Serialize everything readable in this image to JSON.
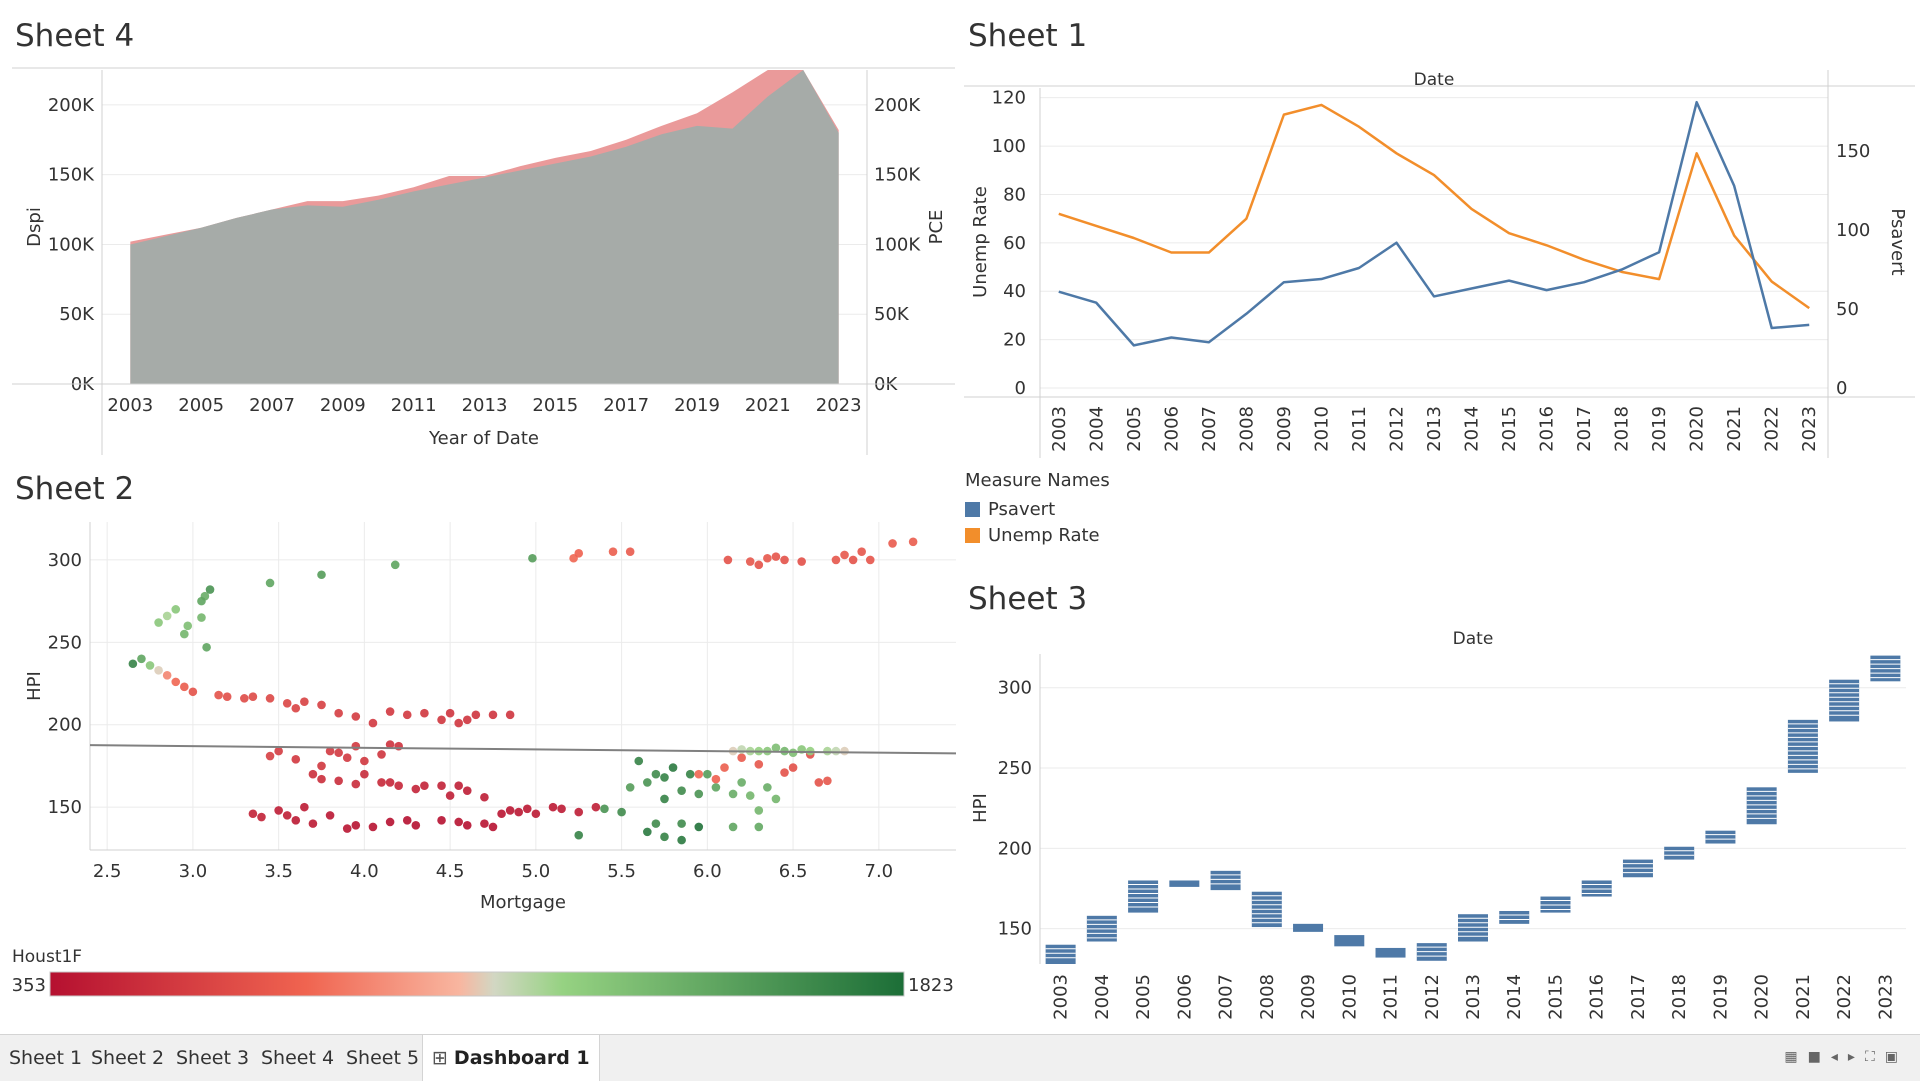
{
  "sheets": {
    "sheet4": {
      "title": "Sheet 4"
    },
    "sheet1": {
      "title": "Sheet 1"
    },
    "sheet2": {
      "title": "Sheet 2"
    },
    "sheet3": {
      "title": "Sheet 3"
    }
  },
  "legend": {
    "title": "Measure Names",
    "items": [
      {
        "label": "Psavert",
        "color": "#4e79a7"
      },
      {
        "label": "Unemp Rate",
        "color": "#f28e2b"
      }
    ]
  },
  "tabs": [
    {
      "label": "Sheet 1"
    },
    {
      "label": "Sheet 2"
    },
    {
      "label": "Sheet 3"
    },
    {
      "label": "Sheet 4"
    },
    {
      "label": "Sheet 5"
    },
    {
      "label": "Dashboard 1",
      "active": true,
      "icon": "dashboard-icon"
    }
  ],
  "chart_data": [
    {
      "id": "sheet4",
      "type": "area",
      "xlabel": "Year of Date",
      "ylabel": "Dspi",
      "y2label": "PCE",
      "x": [
        2003,
        2004,
        2005,
        2006,
        2007,
        2008,
        2009,
        2010,
        2011,
        2012,
        2013,
        2014,
        2015,
        2016,
        2017,
        2018,
        2019,
        2020,
        2021,
        2022,
        2023
      ],
      "xticks": [
        2003,
        2005,
        2007,
        2009,
        2011,
        2013,
        2015,
        2017,
        2019,
        2021,
        2023
      ],
      "ylim": [
        0,
        225000
      ],
      "yticks": [
        0,
        50000,
        100000,
        150000,
        200000
      ],
      "yticklabels": [
        "0K",
        "50K",
        "100K",
        "150K",
        "200K"
      ],
      "y2lim": [
        0,
        225000
      ],
      "y2ticks": [
        0,
        50000,
        100000,
        150000,
        200000
      ],
      "y2ticklabels": [
        "0K",
        "50K",
        "100K",
        "150K",
        "200K"
      ],
      "series": [
        {
          "name": "Dspi",
          "color": "#ea9a9a",
          "values": [
            102000,
            107000,
            112000,
            119000,
            125000,
            131000,
            131000,
            135000,
            141000,
            149000,
            149000,
            156000,
            162000,
            167000,
            175000,
            185000,
            194000,
            209000,
            225000,
            225000,
            182000
          ]
        },
        {
          "name": "PCE",
          "color": "#a6aba8",
          "values": [
            100000,
            106000,
            112000,
            119000,
            125000,
            128000,
            127000,
            132000,
            138000,
            143000,
            148000,
            153000,
            158000,
            163000,
            170000,
            179000,
            185000,
            183000,
            206000,
            225000,
            180000
          ]
        }
      ]
    },
    {
      "id": "sheet1",
      "type": "line",
      "title": "Date",
      "ylabel": "Unemp Rate",
      "y2label": "Psavert",
      "categories": [
        "2003",
        "2004",
        "2005",
        "2006",
        "2007",
        "2008",
        "2009",
        "2010",
        "2011",
        "2012",
        "2013",
        "2014",
        "2015",
        "2016",
        "2017",
        "2018",
        "2019",
        "2020",
        "2021",
        "2022",
        "2023"
      ],
      "ylim": [
        0,
        124
      ],
      "yticks": [
        0,
        20,
        40,
        60,
        80,
        100,
        120
      ],
      "y2lim": [
        0,
        190
      ],
      "y2ticks": [
        0,
        50,
        100,
        150
      ],
      "series": [
        {
          "name": "Unemp Rate",
          "axis": "left",
          "color": "#f28e2b",
          "values": [
            72,
            67,
            62,
            56,
            56,
            70,
            113,
            117,
            108,
            97,
            88,
            74,
            64,
            59,
            53,
            48,
            45,
            97,
            63,
            44,
            33
          ]
        },
        {
          "name": "Psavert",
          "axis": "right",
          "color": "#4e79a7",
          "values": [
            61,
            54,
            27,
            32,
            29,
            47,
            67,
            69,
            76,
            92,
            58,
            63,
            68,
            62,
            67,
            75,
            86,
            181,
            128,
            38,
            40
          ]
        }
      ]
    },
    {
      "id": "sheet2",
      "type": "scatter",
      "xlabel": "Mortgage",
      "ylabel": "HPI",
      "xlim": [
        2.4,
        7.45
      ],
      "xticks": [
        2.5,
        3.0,
        3.5,
        4.0,
        4.5,
        5.0,
        5.5,
        6.0,
        6.5,
        7.0
      ],
      "xticklabels": [
        "2.5",
        "3.0",
        "3.5",
        "4.0",
        "4.5",
        "5.0",
        "5.5",
        "6.0",
        "6.5",
        "7.0"
      ],
      "ylim": [
        124,
        323
      ],
      "yticks": [
        150,
        200,
        250,
        300
      ],
      "trendline": {
        "x": [
          2.4,
          7.45
        ],
        "y": [
          187.6,
          182.6
        ],
        "color": "#808080"
      },
      "color_legend": {
        "title": "Houst1F",
        "min": 353,
        "max": 1823
      },
      "points": [
        [
          2.65,
          237,
          1700
        ],
        [
          2.7,
          240,
          1500
        ],
        [
          2.75,
          236,
          1300
        ],
        [
          2.8,
          233,
          1100
        ],
        [
          2.85,
          230,
          900
        ],
        [
          2.9,
          226,
          800
        ],
        [
          2.95,
          223,
          750
        ],
        [
          3.0,
          220,
          700
        ],
        [
          2.85,
          266,
          1200
        ],
        [
          2.9,
          270,
          1300
        ],
        [
          2.95,
          255,
          1400
        ],
        [
          2.97,
          260,
          1350
        ],
        [
          3.05,
          265,
          1400
        ],
        [
          3.07,
          278,
          1450
        ],
        [
          3.1,
          282,
          1600
        ],
        [
          3.05,
          275,
          1500
        ],
        [
          3.08,
          247,
          1500
        ],
        [
          2.8,
          262,
          1300
        ],
        [
          3.45,
          286,
          1500
        ],
        [
          3.75,
          291,
          1550
        ],
        [
          4.18,
          297,
          1500
        ],
        [
          4.98,
          301,
          1550
        ],
        [
          5.22,
          301,
          800
        ],
        [
          5.25,
          304,
          780
        ],
        [
          5.45,
          305,
          760
        ],
        [
          5.55,
          305,
          740
        ],
        [
          6.12,
          300,
          700
        ],
        [
          6.25,
          299,
          720
        ],
        [
          6.35,
          301,
          730
        ],
        [
          6.4,
          302,
          710
        ],
        [
          6.45,
          300,
          700
        ],
        [
          6.55,
          299,
          690
        ],
        [
          6.75,
          300,
          720
        ],
        [
          6.8,
          303,
          730
        ],
        [
          6.85,
          300,
          700
        ],
        [
          6.95,
          300,
          710
        ],
        [
          7.08,
          310,
          740
        ],
        [
          7.2,
          311,
          750
        ],
        [
          6.9,
          305,
          720
        ],
        [
          6.3,
          297,
          700
        ],
        [
          3.15,
          218,
          700
        ],
        [
          3.2,
          217,
          680
        ],
        [
          3.3,
          216,
          660
        ],
        [
          3.35,
          217,
          650
        ],
        [
          3.45,
          216,
          640
        ],
        [
          3.55,
          213,
          630
        ],
        [
          3.6,
          210,
          620
        ],
        [
          3.65,
          214,
          610
        ],
        [
          3.75,
          212,
          600
        ],
        [
          3.85,
          207,
          590
        ],
        [
          3.95,
          205,
          580
        ],
        [
          4.05,
          201,
          570
        ],
        [
          4.15,
          208,
          560
        ],
        [
          4.25,
          206,
          560
        ],
        [
          4.35,
          207,
          550
        ],
        [
          4.45,
          203,
          550
        ],
        [
          4.55,
          201,
          545
        ],
        [
          4.65,
          206,
          540
        ],
        [
          4.75,
          206,
          540
        ],
        [
          4.85,
          206,
          540
        ],
        [
          4.5,
          207,
          540
        ],
        [
          4.6,
          203,
          540
        ],
        [
          3.45,
          181,
          600
        ],
        [
          3.5,
          184,
          580
        ],
        [
          3.6,
          179,
          560
        ],
        [
          3.75,
          175,
          550
        ],
        [
          3.85,
          183,
          560
        ],
        [
          3.9,
          180,
          570
        ],
        [
          3.95,
          187,
          560
        ],
        [
          4.0,
          178,
          550
        ],
        [
          4.1,
          182,
          540
        ],
        [
          4.15,
          188,
          530
        ],
        [
          4.2,
          187,
          530
        ],
        [
          3.8,
          184,
          570
        ],
        [
          3.7,
          170,
          520
        ],
        [
          3.75,
          167,
          510
        ],
        [
          3.85,
          166,
          500
        ],
        [
          3.95,
          164,
          500
        ],
        [
          4.0,
          170,
          490
        ],
        [
          4.1,
          165,
          480
        ],
        [
          4.2,
          163,
          470
        ],
        [
          4.3,
          161,
          460
        ],
        [
          4.35,
          163,
          450
        ],
        [
          4.45,
          163,
          440
        ],
        [
          4.55,
          163,
          430
        ],
        [
          4.6,
          160,
          420
        ],
        [
          4.15,
          165,
          470
        ],
        [
          4.5,
          157,
          430
        ],
        [
          4.7,
          156,
          420
        ],
        [
          3.35,
          146,
          450
        ],
        [
          3.4,
          144,
          440
        ],
        [
          3.5,
          148,
          420
        ],
        [
          3.6,
          142,
          400
        ],
        [
          3.65,
          150,
          410
        ],
        [
          3.7,
          140,
          400
        ],
        [
          3.8,
          145,
          390
        ],
        [
          3.9,
          137,
          380
        ],
        [
          3.95,
          139,
          370
        ],
        [
          4.05,
          138,
          370
        ],
        [
          4.15,
          141,
          360
        ],
        [
          4.3,
          139,
          355
        ],
        [
          4.45,
          142,
          360
        ],
        [
          4.55,
          141,
          370
        ],
        [
          4.7,
          140,
          375
        ],
        [
          4.8,
          146,
          380
        ],
        [
          4.85,
          148,
          385
        ],
        [
          4.9,
          147,
          390
        ],
        [
          4.95,
          149,
          395
        ],
        [
          5.0,
          146,
          400
        ],
        [
          5.1,
          150,
          405
        ],
        [
          5.15,
          149,
          410
        ],
        [
          5.25,
          147,
          420
        ],
        [
          5.35,
          150,
          430
        ],
        [
          4.6,
          139,
          360
        ],
        [
          4.75,
          138,
          365
        ],
        [
          4.25,
          142,
          360
        ],
        [
          3.55,
          145,
          430
        ],
        [
          5.25,
          133,
          1700
        ],
        [
          5.5,
          147,
          1650
        ],
        [
          5.4,
          149,
          1600
        ],
        [
          5.65,
          135,
          1750
        ],
        [
          5.75,
          132,
          1700
        ],
        [
          5.85,
          130,
          1750
        ],
        [
          5.95,
          138,
          1800
        ],
        [
          5.7,
          140,
          1650
        ],
        [
          5.55,
          162,
          1550
        ],
        [
          5.65,
          165,
          1600
        ],
        [
          5.75,
          168,
          1700
        ],
        [
          5.8,
          174,
          1750
        ],
        [
          5.85,
          160,
          1650
        ],
        [
          5.9,
          170,
          1700
        ],
        [
          5.95,
          158,
          1600
        ],
        [
          5.7,
          170,
          1650
        ],
        [
          6.05,
          162,
          1500
        ],
        [
          6.15,
          158,
          1450
        ],
        [
          6.25,
          157,
          1400
        ],
        [
          6.35,
          162,
          1450
        ],
        [
          6.4,
          155,
          1400
        ],
        [
          6.2,
          165,
          1450
        ],
        [
          6.3,
          148,
          1400
        ],
        [
          6.15,
          138,
          1500
        ],
        [
          6.3,
          138,
          1480
        ],
        [
          5.6,
          178,
          1700
        ],
        [
          5.75,
          155,
          1700
        ],
        [
          6.0,
          170,
          1550
        ],
        [
          5.85,
          140,
          1650
        ],
        [
          5.95,
          170,
          800
        ],
        [
          6.05,
          167,
          780
        ],
        [
          6.1,
          174,
          760
        ],
        [
          6.2,
          180,
          740
        ],
        [
          6.3,
          176,
          720
        ],
        [
          6.45,
          171,
          700
        ],
        [
          6.5,
          174,
          690
        ],
        [
          6.6,
          182,
          680
        ],
        [
          6.65,
          165,
          700
        ],
        [
          6.7,
          166,
          720
        ],
        [
          6.15,
          184,
          1100
        ],
        [
          6.2,
          185,
          1150
        ],
        [
          6.25,
          184,
          1200
        ],
        [
          6.3,
          184,
          1250
        ],
        [
          6.35,
          184,
          1300
        ],
        [
          6.4,
          186,
          1350
        ],
        [
          6.45,
          184,
          1400
        ],
        [
          6.5,
          183,
          1350
        ],
        [
          6.55,
          185,
          1300
        ],
        [
          6.6,
          184,
          1250
        ],
        [
          6.7,
          184,
          1200
        ],
        [
          6.75,
          184,
          1150
        ],
        [
          6.8,
          184,
          1100
        ]
      ]
    },
    {
      "id": "sheet3",
      "type": "bar",
      "title": "Date",
      "ylabel": "HPI",
      "categories": [
        "2003",
        "2004",
        "2005",
        "2006",
        "2007",
        "2008",
        "2009",
        "2010",
        "2011",
        "2012",
        "2013",
        "2014",
        "2015",
        "2016",
        "2017",
        "2018",
        "2019",
        "2020",
        "2021",
        "2022",
        "2023"
      ],
      "ylim": [
        128,
        321
      ],
      "yticks": [
        150,
        200,
        250,
        300
      ],
      "color": "#4e79a7",
      "ranges": [
        [
          128,
          140
        ],
        [
          142,
          158
        ],
        [
          160,
          180
        ],
        [
          176,
          180
        ],
        [
          174,
          186
        ],
        [
          151,
          173
        ],
        [
          148,
          153
        ],
        [
          139,
          146
        ],
        [
          132,
          138
        ],
        [
          130,
          141
        ],
        [
          142,
          159
        ],
        [
          153,
          161
        ],
        [
          160,
          170
        ],
        [
          170,
          180
        ],
        [
          182,
          193
        ],
        [
          193,
          201
        ],
        [
          203,
          211
        ],
        [
          215,
          238
        ],
        [
          247,
          280
        ],
        [
          279,
          305
        ],
        [
          304,
          320
        ]
      ]
    }
  ]
}
